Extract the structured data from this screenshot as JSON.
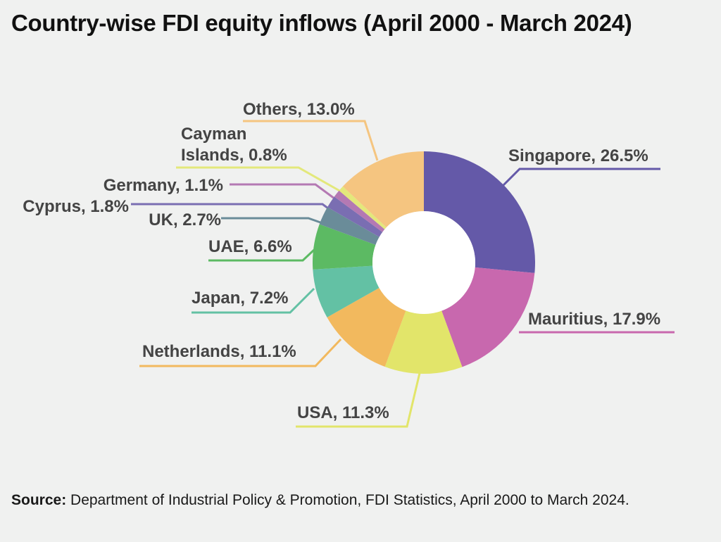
{
  "title": "Country-wise FDI equity inflows (April 2000 - March 2024)",
  "source_label": "Source:",
  "source_text": "Department of Industrial Policy & Promotion, FDI Statistics, April 2000 to March 2024.",
  "chart_data": {
    "type": "pie",
    "donut": true,
    "unit": "%",
    "slices": [
      {
        "name": "Singapore",
        "value": 26.5,
        "label": "Singapore, 26.5%",
        "color": "#6459a8"
      },
      {
        "name": "Mauritius",
        "value": 17.9,
        "label": "Mauritius, 17.9%",
        "color": "#c868ae"
      },
      {
        "name": "USA",
        "value": 11.3,
        "label": "USA, 11.3%",
        "color": "#e2e56a"
      },
      {
        "name": "Netherlands",
        "value": 11.1,
        "label": "Netherlands, 11.1%",
        "color": "#f2b95e"
      },
      {
        "name": "Japan",
        "value": 7.2,
        "label": "Japan, 7.2%",
        "color": "#63c1a4"
      },
      {
        "name": "UAE",
        "value": 6.6,
        "label": "UAE, 6.6%",
        "color": "#5cba63"
      },
      {
        "name": "UK",
        "value": 2.7,
        "label": "UK, 2.7%",
        "color": "#6a8c99"
      },
      {
        "name": "Cyprus",
        "value": 1.8,
        "label": "Cyprus, 1.8%",
        "color": "#7a6eb2"
      },
      {
        "name": "Germany",
        "value": 1.1,
        "label": "Germany, 1.1%",
        "color": "#b479b3"
      },
      {
        "name": "Cayman Islands",
        "value": 0.8,
        "label": "Cayman Islands, 0.8%",
        "label_lines": [
          "Cayman",
          "Islands, 0.8%"
        ],
        "color": "#e3e87b"
      },
      {
        "name": "Others",
        "value": 13.0,
        "label": "Others, 13.0%",
        "color": "#f5c580"
      }
    ]
  }
}
